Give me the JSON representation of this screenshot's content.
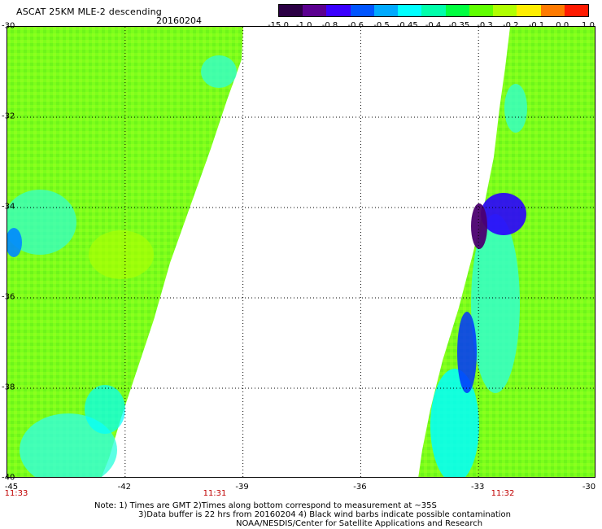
{
  "header": {
    "title": "ASCAT 25KM MLE-2 descending",
    "date": "20160204"
  },
  "colorbar": {
    "labels": [
      "-15.0",
      "-1.0",
      "-0.8",
      "-0.6",
      "-0.5",
      "-0.45",
      "-0.4",
      "-0.35",
      "-0.3",
      "-0.2",
      "-0.1",
      "0.0",
      "1.0"
    ],
    "colors": [
      "#2b0044",
      "#5b0090",
      "#3a00ff",
      "#0055ff",
      "#00aaff",
      "#00ffff",
      "#00ffaa",
      "#00ff40",
      "#60ff00",
      "#b0ff00",
      "#ffee00",
      "#ff7a00",
      "#ff1a00"
    ]
  },
  "axes": {
    "y_ticks": [
      "-30",
      "-32",
      "-34",
      "-36",
      "-38",
      "-40"
    ],
    "x_ticks": [
      "-45",
      "-42",
      "-39",
      "-36",
      "-33",
      "-30"
    ]
  },
  "times": [
    "11:33",
    "11:31",
    "11:32"
  ],
  "notes": [
    "Note: 1) Times are GMT 2)Times along bottom correspond to measurement at ~35S",
    "3)Data buffer is 22 hrs from 20160204 4) Black wind barbs indicate possible contamination",
    "NOAA/NESDIS/Center for Satellite Applications and Research"
  ]
}
